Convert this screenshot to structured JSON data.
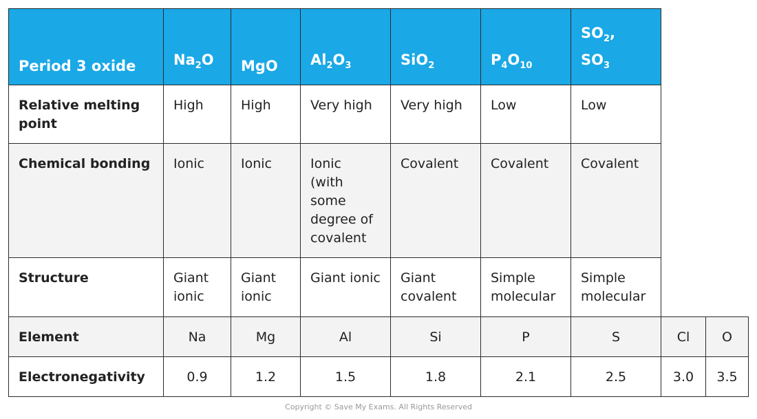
{
  "header": {
    "cells": [
      [
        "Period 3 oxide"
      ],
      [
        "Na",
        {
          "sub": "2"
        },
        "O"
      ],
      [
        "MgO"
      ],
      [
        "Al",
        {
          "sub": "2"
        },
        "O",
        {
          "sub": "3"
        }
      ],
      [
        "SiO",
        {
          "sub": "2"
        }
      ],
      [
        "P",
        {
          "sub": "4"
        },
        "O",
        {
          "sub": "10"
        }
      ],
      [
        "SO",
        {
          "sub": "2"
        },
        ", SO",
        {
          "sub": "3"
        }
      ]
    ]
  },
  "table": {
    "rows": [
      [
        "Relative melting point",
        "High",
        "High",
        "Very high",
        "Very high",
        "Low",
        "Low"
      ],
      [
        "Chemical bonding",
        "Ionic",
        "Ionic",
        "Ionic (with some degree of covalent",
        "Covalent",
        "Covalent",
        "Covalent"
      ],
      [
        "Structure",
        "Giant ionic",
        "Giant ionic",
        "Giant ionic",
        "Giant covalent",
        "Simple molecular",
        "Simple molecular"
      ],
      [
        "Element",
        "Na",
        "Mg",
        "Al",
        "Si",
        "P",
        "S",
        "Cl",
        "O"
      ],
      [
        "Electronegativity",
        "0.9",
        "1.2",
        "1.5",
        "1.8",
        "2.1",
        "2.5",
        "3.0",
        "3.5"
      ]
    ]
  },
  "footer": {
    "copyright": "Copyright © Save My Exams. All Rights Reserved"
  }
}
